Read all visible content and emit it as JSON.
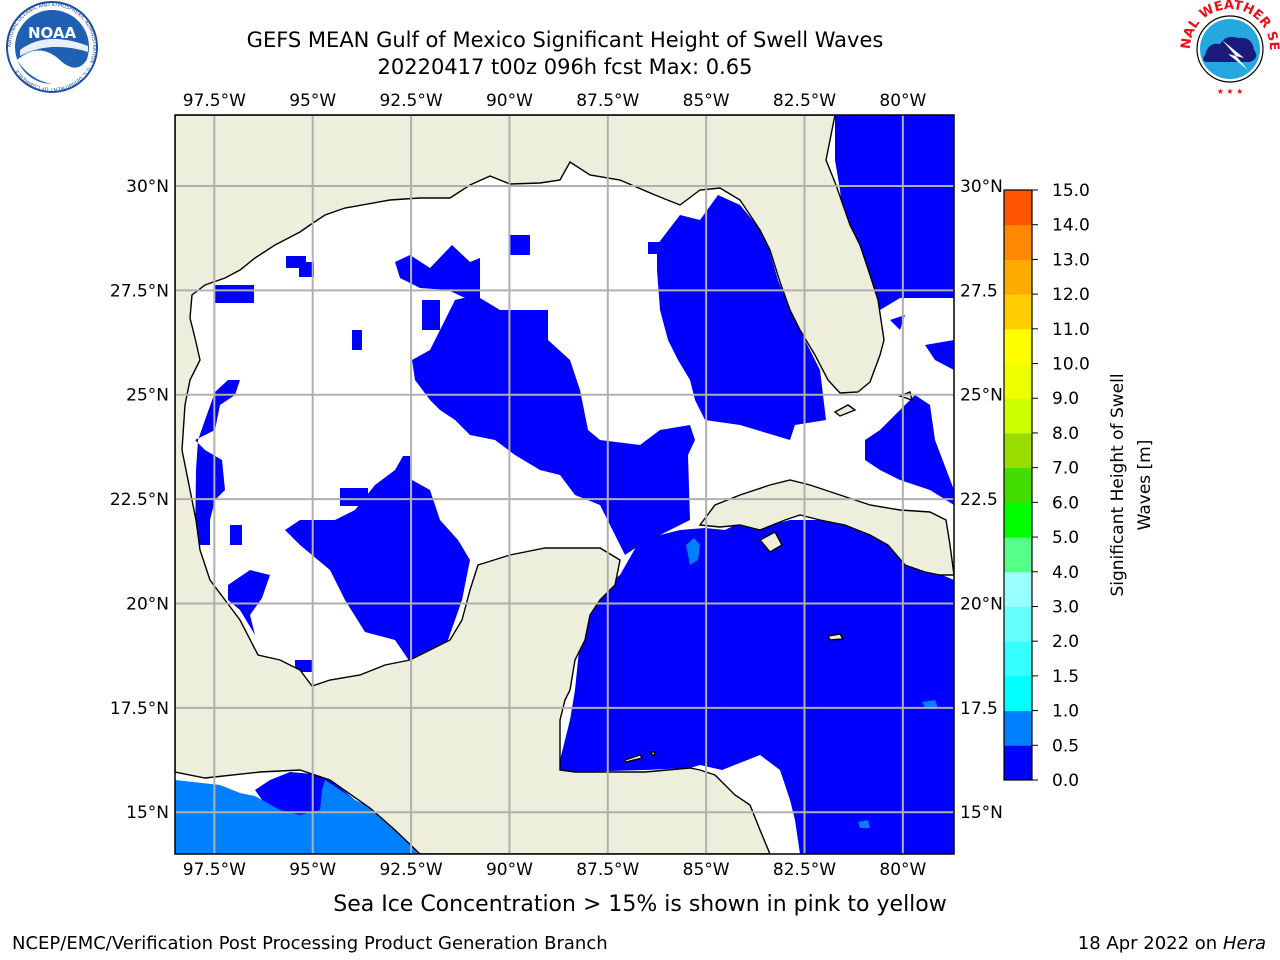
{
  "header": {
    "title_line1": "GEFS MEAN Gulf of Mexico Significant Height of Swell Waves",
    "title_line2": "20220417 t00z 096h fcst   Max: 0.65"
  },
  "logos": {
    "noaa": {
      "text": "NOAA",
      "ring_text": "NATIONAL OCEANIC AND ATMOSPHERIC ADMINISTRATION · U.S. DEPARTMENT OF COMMERCE"
    },
    "nws": {
      "ring_text": "NATIONAL WEATHER SERVICE"
    }
  },
  "map": {
    "lon_range": [
      -98.5,
      -78.7
    ],
    "lat_range": [
      14.0,
      31.7
    ],
    "lon_ticks": [
      "97.5°W",
      "95°W",
      "92.5°W",
      "90°W",
      "87.5°W",
      "85°W",
      "82.5°W",
      "80°W"
    ],
    "lon_tick_values": [
      -97.5,
      -95,
      -92.5,
      -90,
      -87.5,
      -85,
      -82.5,
      -80
    ],
    "lat_ticks": [
      "30°N",
      "27.5°N",
      "25°N",
      "22.5°N",
      "20°N",
      "17.5°N",
      "15°N"
    ],
    "lat_ticks_right": [
      "30°N",
      "27.5",
      "25°N",
      "22.5",
      "20°N",
      "17.5",
      "15°N"
    ],
    "lat_tick_values": [
      30,
      27.5,
      25,
      22.5,
      20,
      17.5,
      15
    ],
    "colors": {
      "land": "#eeeedd",
      "zero_band": "#0000ff",
      "low_band": "#0080ff",
      "grid": "#b0b0b0"
    }
  },
  "colorbar": {
    "label": "Significant Height of Swell Waves [m]",
    "label_line1": "Significant Height of Swell",
    "label_line2": "Waves [m]",
    "ticks": [
      "0.0",
      "0.5",
      "1.0",
      "1.5",
      "2.0",
      "3.0",
      "4.0",
      "5.0",
      "6.0",
      "7.0",
      "8.0",
      "9.0",
      "10.0",
      "11.0",
      "12.0",
      "13.0",
      "14.0",
      "15.0"
    ],
    "colors": [
      "#0000ff",
      "#0080ff",
      "#00ffff",
      "#33ffff",
      "#66ffff",
      "#99ffff",
      "#55ff88",
      "#00ff00",
      "#44dd00",
      "#99dd00",
      "#ccff00",
      "#eeff00",
      "#ffff00",
      "#ffcc00",
      "#ffaa00",
      "#ff8800",
      "#ff5500",
      "#ff2200",
      "#ff0000"
    ]
  },
  "footer": {
    "note": "Sea Ice Concentration > 15% is shown in pink to yellow",
    "credit": "NCEP/EMC/Verification Post Processing Product Generation Branch",
    "date_prefix": "18 Apr 2022 on",
    "machine": "Hera"
  }
}
